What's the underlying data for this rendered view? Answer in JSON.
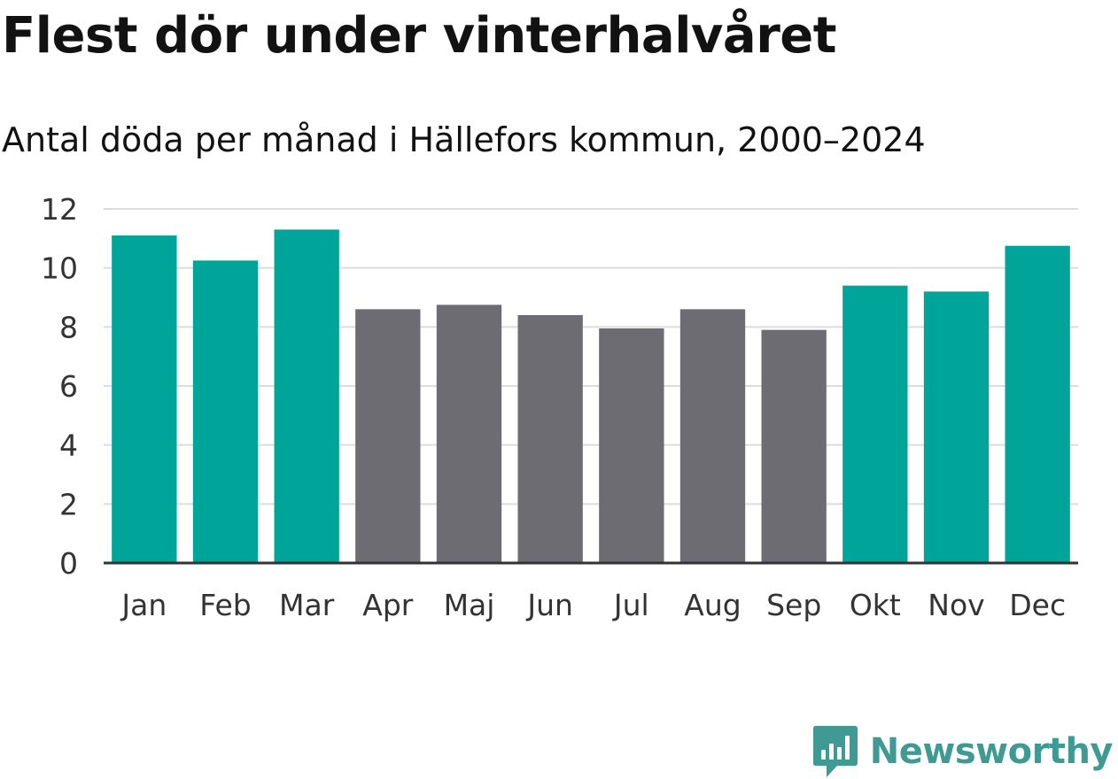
{
  "chart_data": {
    "type": "bar",
    "title": "Flest dör under vinterhalvåret",
    "subtitle": "Antal döda per månad i Hällefors kommun, 2000–2024",
    "xlabel": "",
    "ylabel": "",
    "categories": [
      "Jan",
      "Feb",
      "Mar",
      "Apr",
      "Maj",
      "Jun",
      "Jul",
      "Aug",
      "Sep",
      "Okt",
      "Nov",
      "Dec"
    ],
    "values": [
      11.1,
      10.25,
      11.3,
      8.6,
      8.75,
      8.4,
      7.95,
      8.6,
      7.9,
      9.4,
      9.2,
      10.75
    ],
    "highlight": [
      true,
      true,
      true,
      false,
      false,
      false,
      false,
      false,
      false,
      true,
      true,
      true
    ],
    "ylim": [
      0,
      12
    ],
    "yticks": [
      0,
      2,
      4,
      6,
      8,
      10,
      12
    ],
    "grid": true,
    "legend": "none",
    "colors": {
      "highlight": "#00a499",
      "default": "#6d6c73",
      "grid": "#dcdcdc",
      "axis": "#333333"
    }
  },
  "brand": {
    "name": "Newsworthy",
    "icon": "newsworthy-logo-icon",
    "color": "#3e9a93"
  }
}
